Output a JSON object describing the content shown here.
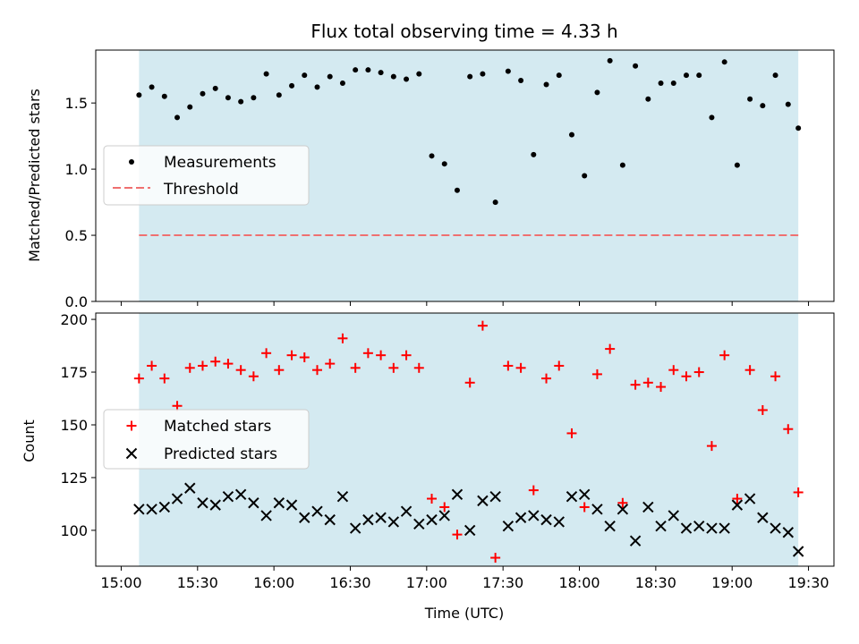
{
  "chart_data": {
    "title": "Flux total observing time = 4.33 h",
    "xlabel": "Time (UTC)",
    "x_ticks": [
      "15:00",
      "15:30",
      "16:00",
      "16:30",
      "17:00",
      "17:30",
      "18:00",
      "18:30",
      "19:00",
      "19:30"
    ],
    "x_range_minutes": [
      -10,
      280
    ],
    "shaded_interval_minutes": [
      7,
      266
    ],
    "colors": {
      "shade": "#d4eaf1",
      "measurement": "#000000",
      "threshold": "#ef7070",
      "matched": "#ff0000",
      "predicted": "#000000"
    },
    "panels": [
      {
        "type": "scatter",
        "ylabel": "Matched/Predicted stars",
        "ylim": [
          0,
          1.9
        ],
        "y_ticks": [
          0.0,
          0.5,
          1.0,
          1.5
        ],
        "legend": [
          "Measurements",
          "Threshold"
        ],
        "threshold": 0.5,
        "series": [
          {
            "name": "Measurements",
            "times": [
              "15:07",
              "15:12",
              "15:17",
              "15:22",
              "15:27",
              "15:32",
              "15:37",
              "15:42",
              "15:47",
              "15:52",
              "15:57",
              "16:02",
              "16:07",
              "16:12",
              "16:17",
              "16:22",
              "16:27",
              "16:32",
              "16:37",
              "16:42",
              "16:47",
              "16:52",
              "16:57",
              "17:02",
              "17:07",
              "17:12",
              "17:17",
              "17:22",
              "17:27",
              "17:32",
              "17:37",
              "17:42",
              "17:47",
              "17:52",
              "17:57",
              "18:02",
              "18:07",
              "18:12",
              "18:17",
              "18:22",
              "18:27",
              "18:32",
              "18:37",
              "18:42",
              "18:47",
              "18:52",
              "18:57",
              "19:02",
              "19:07",
              "19:12",
              "19:17",
              "19:22",
              "19:26"
            ],
            "values": [
              1.56,
              1.62,
              1.55,
              1.39,
              1.47,
              1.57,
              1.61,
              1.54,
              1.51,
              1.54,
              1.72,
              1.56,
              1.63,
              1.71,
              1.62,
              1.7,
              1.65,
              1.75,
              1.75,
              1.73,
              1.7,
              1.68,
              1.72,
              1.1,
              1.04,
              0.84,
              1.7,
              1.72,
              0.75,
              1.74,
              1.67,
              1.11,
              1.64,
              1.71,
              1.26,
              0.95,
              1.58,
              1.82,
              1.03,
              1.78,
              1.53,
              1.65,
              1.65,
              1.71,
              1.71,
              1.39,
              1.81,
              1.03,
              1.53,
              1.48,
              1.71,
              1.49,
              1.31
            ]
          }
        ]
      },
      {
        "type": "scatter",
        "ylabel": "Count",
        "ylim": [
          83,
          203
        ],
        "y_ticks": [
          100,
          125,
          150,
          175,
          200
        ],
        "legend": [
          "Matched stars",
          "Predicted stars"
        ],
        "series": [
          {
            "name": "Matched stars",
            "times": [
              "15:07",
              "15:12",
              "15:17",
              "15:22",
              "15:27",
              "15:32",
              "15:37",
              "15:42",
              "15:47",
              "15:52",
              "15:57",
              "16:02",
              "16:07",
              "16:12",
              "16:17",
              "16:22",
              "16:27",
              "16:32",
              "16:37",
              "16:42",
              "16:47",
              "16:52",
              "16:57",
              "17:02",
              "17:07",
              "17:12",
              "17:17",
              "17:22",
              "17:27",
              "17:32",
              "17:37",
              "17:42",
              "17:47",
              "17:52",
              "17:57",
              "18:02",
              "18:07",
              "18:12",
              "18:17",
              "18:22",
              "18:27",
              "18:32",
              "18:37",
              "18:42",
              "18:47",
              "18:52",
              "18:57",
              "19:02",
              "19:07",
              "19:12",
              "19:17",
              "19:22",
              "19:26"
            ],
            "values": [
              172,
              178,
              172,
              159,
              177,
              178,
              180,
              179,
              176,
              173,
              184,
              176,
              183,
              182,
              176,
              179,
              191,
              177,
              184,
              183,
              177,
              183,
              177,
              115,
              111,
              98,
              170,
              197,
              87,
              178,
              177,
              119,
              172,
              178,
              146,
              111,
              174,
              186,
              113,
              169,
              170,
              168,
              176,
              173,
              175,
              140,
              183,
              115,
              176,
              157,
              173,
              148,
              118
            ]
          },
          {
            "name": "Predicted stars",
            "times": [
              "15:07",
              "15:12",
              "15:17",
              "15:22",
              "15:27",
              "15:32",
              "15:37",
              "15:42",
              "15:47",
              "15:52",
              "15:57",
              "16:02",
              "16:07",
              "16:12",
              "16:17",
              "16:22",
              "16:27",
              "16:32",
              "16:37",
              "16:42",
              "16:47",
              "16:52",
              "16:57",
              "17:02",
              "17:07",
              "17:12",
              "17:17",
              "17:22",
              "17:27",
              "17:32",
              "17:37",
              "17:42",
              "17:47",
              "17:52",
              "17:57",
              "18:02",
              "18:07",
              "18:12",
              "18:17",
              "18:22",
              "18:27",
              "18:32",
              "18:37",
              "18:42",
              "18:47",
              "18:52",
              "18:57",
              "19:02",
              "19:07",
              "19:12",
              "19:17",
              "19:22",
              "19:26"
            ],
            "values": [
              110,
              110,
              111,
              115,
              120,
              113,
              112,
              116,
              117,
              113,
              107,
              113,
              112,
              106,
              109,
              105,
              116,
              101,
              105,
              106,
              104,
              109,
              103,
              105,
              107,
              117,
              100,
              114,
              116,
              102,
              106,
              107,
              105,
              104,
              116,
              117,
              110,
              102,
              110,
              95,
              111,
              102,
              107,
              101,
              102,
              101,
              101,
              112,
              115,
              106,
              101,
              99,
              90
            ]
          }
        ]
      }
    ]
  }
}
